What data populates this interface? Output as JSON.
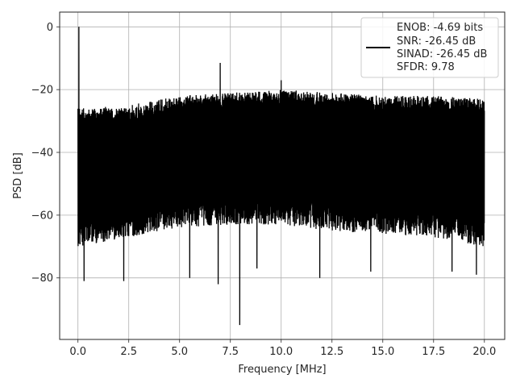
{
  "chart_data": {
    "type": "line",
    "xlabel": "Frequency [MHz]",
    "ylabel": "PSD [dB]",
    "xlim": [
      -0.9,
      21.0
    ],
    "ylim": [
      -99.6,
      4.7
    ],
    "xticks": [
      0.0,
      2.5,
      5.0,
      7.5,
      10.0,
      12.5,
      15.0,
      17.5,
      20.0
    ],
    "xtick_labels": [
      "0.0",
      "2.5",
      "5.0",
      "7.5",
      "10.0",
      "12.5",
      "15.0",
      "17.5",
      "20.0"
    ],
    "yticks": [
      0,
      -20,
      -40,
      -60,
      -80
    ],
    "ytick_labels": [
      "0",
      "−20",
      "−40",
      "−60",
      "−80"
    ],
    "grid": true,
    "legend_position": "top-right",
    "legend_entries": [
      "ENOB: -4.69 bits",
      "SNR: -26.45 dB",
      "SINAD: -26.45 dB",
      "SFDR: 9.78"
    ],
    "series": [
      {
        "color": "#000000",
        "x_range": [
          0.0,
          20.0
        ],
        "noise_floor_db": -45,
        "envelope_top": [
          [
            0.0,
            -26
          ],
          [
            2.5,
            -25
          ],
          [
            5.0,
            -22
          ],
          [
            7.5,
            -21
          ],
          [
            10.0,
            -20
          ],
          [
            12.5,
            -21
          ],
          [
            15.0,
            -22
          ],
          [
            17.5,
            -22
          ],
          [
            20.0,
            -23
          ]
        ],
        "envelope_bottom": [
          [
            0.0,
            -67
          ],
          [
            2.5,
            -64
          ],
          [
            5.0,
            -61
          ],
          [
            7.5,
            -60
          ],
          [
            10.0,
            -60
          ],
          [
            12.5,
            -62
          ],
          [
            15.0,
            -63
          ],
          [
            17.5,
            -64
          ],
          [
            20.0,
            -67
          ]
        ],
        "peaks": [
          {
            "x": 0.05,
            "y": 0.0
          },
          {
            "x": 7.0,
            "y": -11.5
          },
          {
            "x": 10.0,
            "y": -17.0
          }
        ],
        "dips": [
          {
            "x": 0.3,
            "y": -81
          },
          {
            "x": 2.25,
            "y": -81
          },
          {
            "x": 5.5,
            "y": -80
          },
          {
            "x": 6.9,
            "y": -82
          },
          {
            "x": 7.95,
            "y": -95
          },
          {
            "x": 8.8,
            "y": -77
          },
          {
            "x": 11.9,
            "y": -80
          },
          {
            "x": 14.4,
            "y": -78
          },
          {
            "x": 18.4,
            "y": -78
          },
          {
            "x": 19.6,
            "y": -79
          }
        ]
      }
    ]
  }
}
